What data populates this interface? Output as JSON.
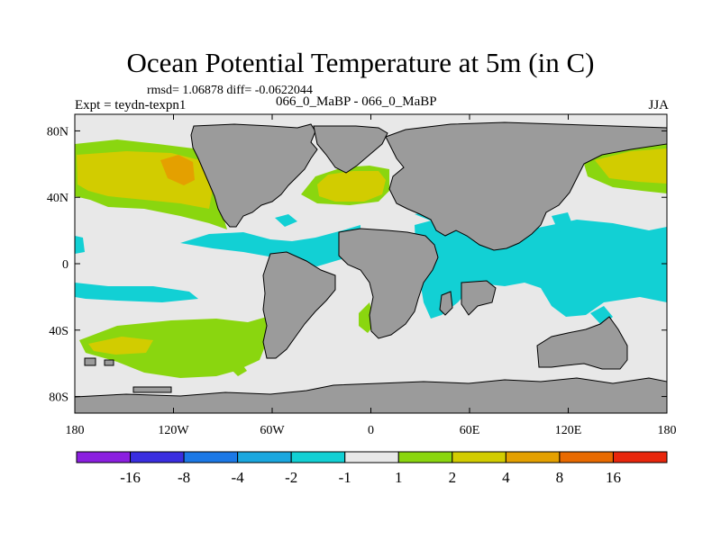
{
  "header": {
    "title": "Ocean Potential Temperature at 5m (in C)",
    "stats": "rmsd= 1.06878 diff= -0.0622044",
    "expt": "Expt = teydn-texpn1",
    "case": "066_0_MaBP - 066_0_MaBP",
    "season": "JJA"
  },
  "map": {
    "lat_ticks": [
      "80N",
      "40N",
      "0",
      "40S",
      "80S"
    ],
    "lon_ticks": [
      "180",
      "120W",
      "60W",
      "0",
      "60E",
      "120E",
      "180"
    ]
  },
  "legend": {
    "labels": [
      "-16",
      "-8",
      "-4",
      "-2",
      "-1",
      "1",
      "2",
      "4",
      "8",
      "16"
    ],
    "colors": [
      "#8b1fe0",
      "#3a2ee0",
      "#1b78e6",
      "#1aa7df",
      "#12d0d4",
      "#e8e8e8",
      "#8ad60f",
      "#d2cc00",
      "#e4a000",
      "#e86a00",
      "#e8260c"
    ]
  },
  "colors": {
    "land": "#9b9b9b",
    "ocean_neutral": "#e8e8e8",
    "cyan": "#12d0d4",
    "green": "#8ad60f",
    "yellow": "#d2cc00",
    "orange": "#e4a000"
  }
}
